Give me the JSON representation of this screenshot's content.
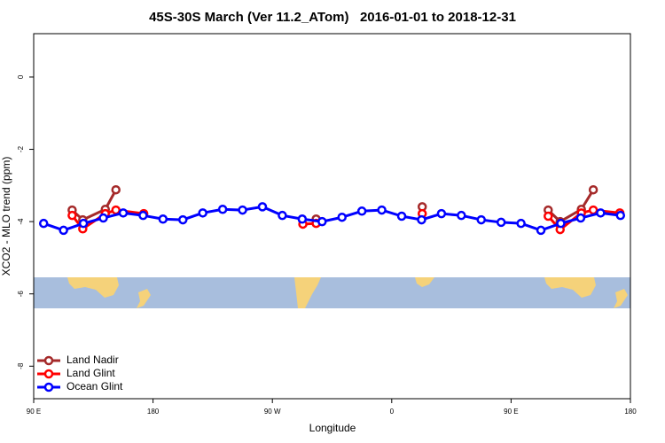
{
  "chart_data": {
    "type": "line",
    "title": "45S-30S March (Ver 11.2_ATom)   2016-01-01 to 2018-12-31",
    "x_label": "Longitude",
    "y_label": "XCO2 - MLO trend (ppm)",
    "xlim": [
      90,
      540
    ],
    "ylim": [
      -8.9,
      1.2
    ],
    "xticks": [
      {
        "value": 90,
        "label": "90 E"
      },
      180,
      {
        "value": 270,
        "label": "90 W"
      },
      {
        "value": 360,
        "label": "0"
      },
      {
        "value": 450,
        "label": "90 E"
      },
      {
        "value": 540,
        "label": "180"
      }
    ],
    "yticks": [
      0,
      -2,
      -4,
      -6,
      -8
    ],
    "legend": "bottom-left",
    "series": [
      {
        "name": "Land Nadir",
        "color": "#a52a2a",
        "x": [
          119,
          127,
          144,
          152,
          null,
          303,
          null,
          383,
          null,
          478,
          487,
          503,
          512
        ],
        "values": [
          -3.68,
          -3.95,
          -3.66,
          -3.12,
          null,
          -3.93,
          null,
          -3.59,
          null,
          -3.68,
          -4.0,
          -3.66,
          -3.12
        ]
      },
      {
        "name": "Land Glint",
        "color": "#ff0000",
        "x": [
          119,
          127,
          144,
          152,
          173,
          null,
          293,
          303,
          null,
          383,
          null,
          478,
          487,
          503,
          512,
          532
        ],
        "values": [
          -3.83,
          -4.2,
          -3.78,
          -3.68,
          -3.78,
          null,
          -4.07,
          -4.05,
          null,
          -3.78,
          null,
          -3.85,
          -4.22,
          -3.76,
          -3.68,
          -3.76
        ]
      },
      {
        "name": "Ocean Glint",
        "color": "#0000ff",
        "x": [
          97.5,
          112.5,
          127.5,
          142.5,
          157.5,
          172.5,
          187.5,
          202.5,
          217.5,
          232.5,
          247.5,
          262.5,
          277.5,
          292.5,
          307.5,
          322.5,
          337.5,
          352.5,
          367.5,
          382.5,
          397.5,
          412.5,
          427.5,
          442.5,
          457.5,
          472.5,
          487.5,
          502.5,
          517.5,
          532.5
        ],
        "values": [
          -4.05,
          -4.24,
          -4.05,
          -3.9,
          -3.76,
          -3.83,
          -3.93,
          -3.95,
          -3.76,
          -3.66,
          -3.68,
          -3.59,
          -3.83,
          -3.93,
          -4.0,
          -3.88,
          -3.71,
          -3.68,
          -3.85,
          -3.95,
          -3.78,
          -3.83,
          -3.95,
          -4.02,
          -4.05,
          -4.24,
          -4.05,
          -3.9,
          -3.76,
          -3.83
        ]
      }
    ]
  }
}
